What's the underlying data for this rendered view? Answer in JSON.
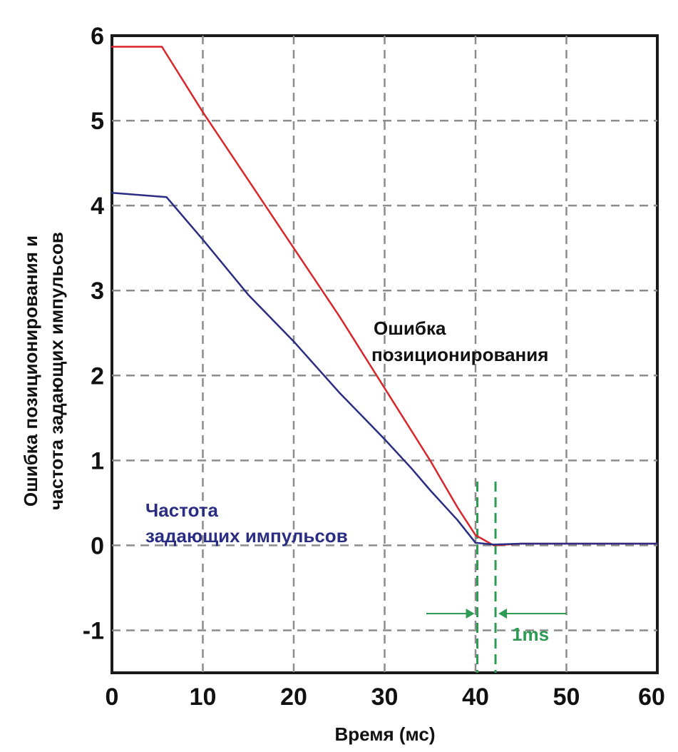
{
  "chart_data": {
    "type": "line",
    "xlabel": "Время (мс)",
    "ylabel_lines": [
      "Ошибка позиционирования и",
      "частота задающих импульсов"
    ],
    "xlim": [
      0,
      60
    ],
    "ylim": [
      -1.5,
      6
    ],
    "xticks": [
      0,
      10,
      20,
      30,
      40,
      50,
      60
    ],
    "yticks": [
      6,
      5,
      4,
      3,
      2,
      1,
      0,
      -1
    ],
    "grid": true,
    "series": [
      {
        "name": "Ошибка позиционирования",
        "color": "#d9262a",
        "x": [
          0,
          5.5,
          10,
          15,
          20,
          25,
          30,
          35,
          38,
          40,
          42,
          45,
          60
        ],
        "y": [
          5.87,
          5.87,
          5.1,
          4.3,
          3.5,
          2.7,
          1.85,
          1.0,
          0.45,
          0.12,
          0.0,
          0.02,
          0.02
        ]
      },
      {
        "name": "Частота задающих импульсов",
        "color": "#2a2d82",
        "x": [
          0,
          6,
          10,
          15,
          20,
          25,
          30,
          33,
          35,
          38,
          40,
          42,
          45,
          60
        ],
        "y": [
          4.15,
          4.1,
          3.6,
          2.95,
          2.4,
          1.8,
          1.25,
          0.9,
          0.65,
          0.3,
          0.03,
          0.01,
          0.02,
          0.02
        ]
      }
    ],
    "annotations": [
      {
        "text": "Ошибка",
        "color": "#111111"
      },
      {
        "text": "позиционирования",
        "color": "#111111"
      },
      {
        "text": "Частота",
        "color": "#2a2d82"
      },
      {
        "text": "задающих импульсов",
        "color": "#2a2d82"
      },
      {
        "text": "1ms",
        "color": "#2e9a54"
      }
    ],
    "marker_lines_x": [
      40.2,
      42.2
    ],
    "marker_color": "#2e9a54"
  }
}
